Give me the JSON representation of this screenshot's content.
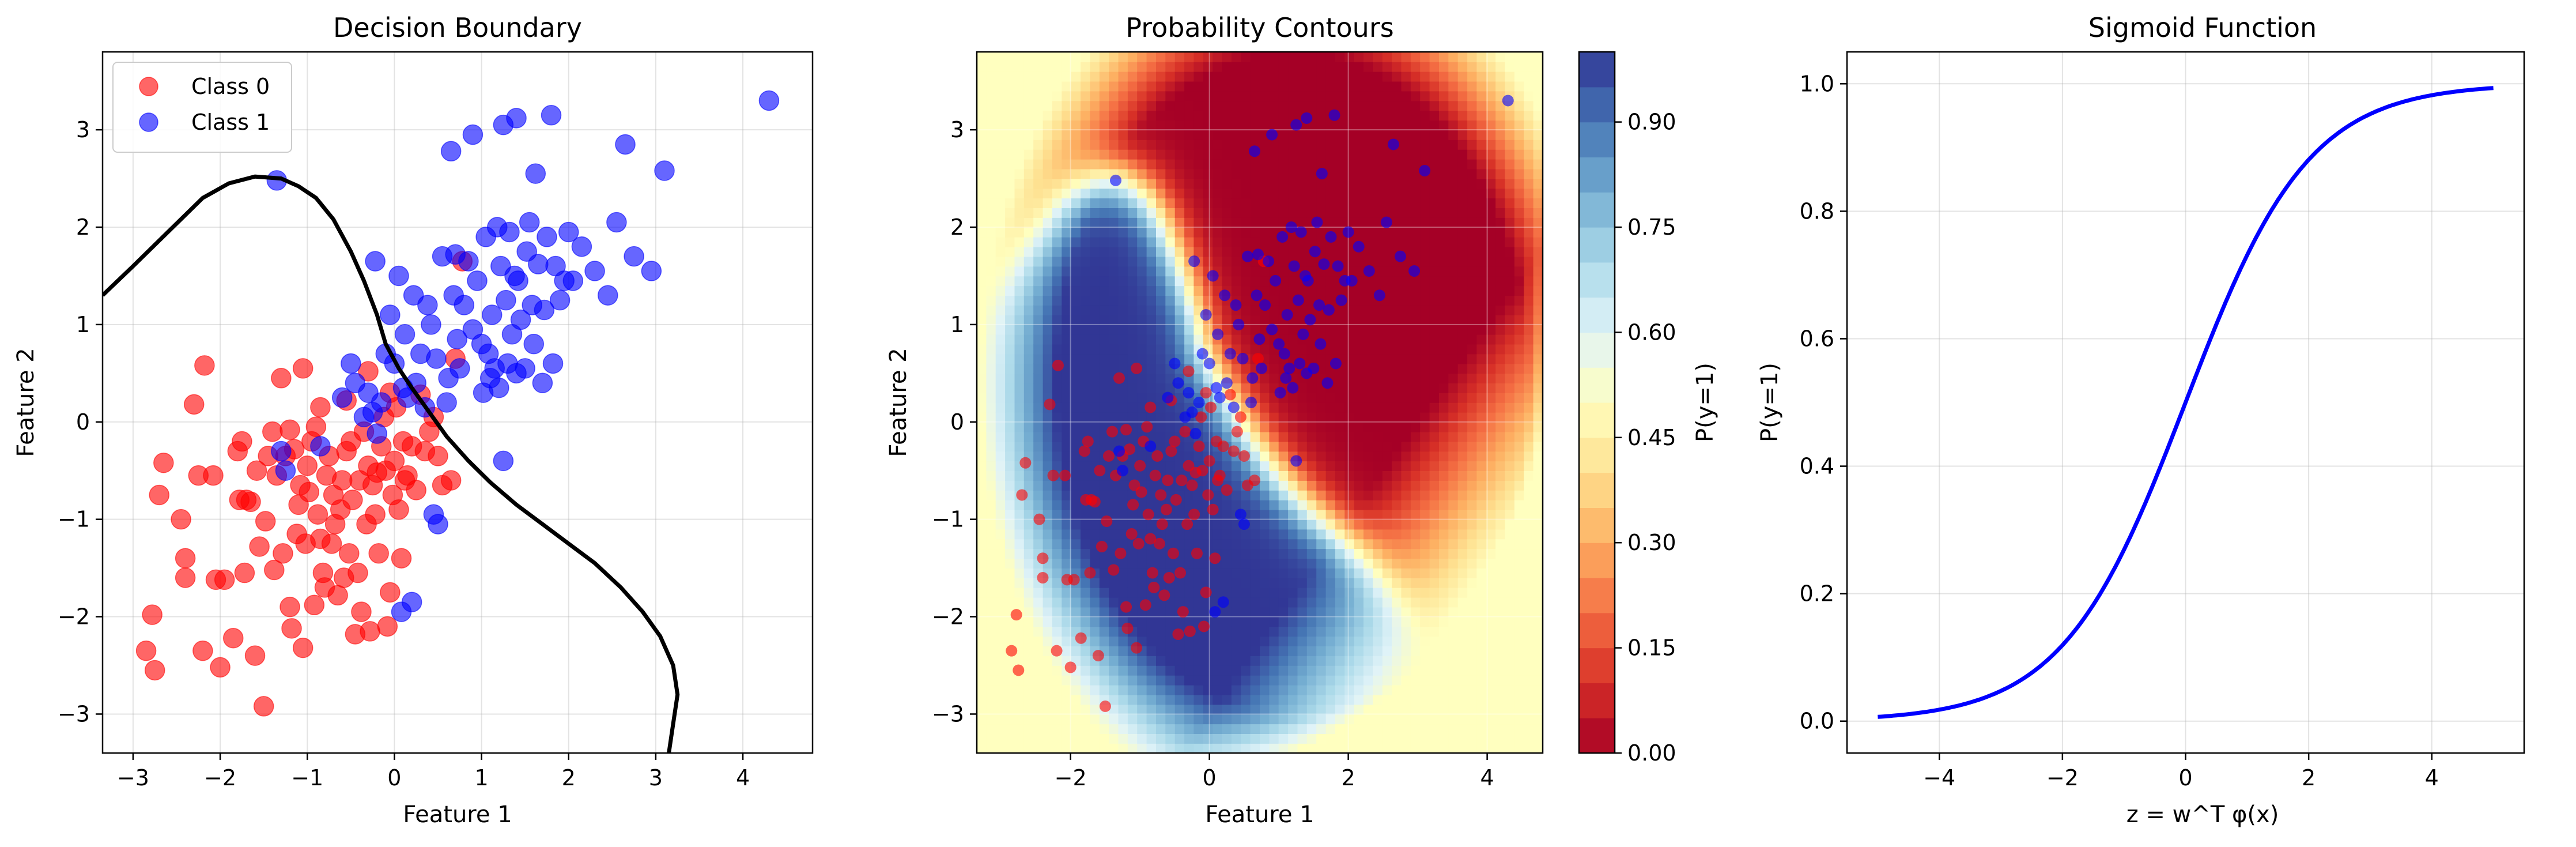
{
  "chart_data": [
    {
      "type": "scatter",
      "title": "Decision Boundary",
      "xlabel": "Feature 1",
      "ylabel": "Feature 2",
      "xlim": [
        -3.35,
        4.8
      ],
      "ylim": [
        -3.4,
        3.8
      ],
      "xticks": [
        -3,
        -2,
        -1,
        0,
        1,
        2,
        3,
        4
      ],
      "yticks": [
        -3,
        -2,
        -1,
        0,
        1,
        2,
        3
      ],
      "grid": true,
      "legend_position": "upper-left",
      "series": [
        {
          "name": "Class 0",
          "color": "#ff0000",
          "points": [
            [
              -2.85,
              -2.35
            ],
            [
              -2.75,
              -2.55
            ],
            [
              -2.78,
              -1.98
            ],
            [
              -2.7,
              -0.75
            ],
            [
              -2.65,
              -0.42
            ],
            [
              -2.45,
              -1.0
            ],
            [
              -2.4,
              -1.4
            ],
            [
              -2.4,
              -1.6
            ],
            [
              -2.3,
              0.18
            ],
            [
              -2.25,
              -0.55
            ],
            [
              -2.2,
              -2.35
            ],
            [
              -2.18,
              0.58
            ],
            [
              -2.08,
              -0.55
            ],
            [
              -2.05,
              -1.62
            ],
            [
              -2.0,
              -2.52
            ],
            [
              -1.95,
              -1.62
            ],
            [
              -1.85,
              -2.22
            ],
            [
              -1.8,
              -0.3
            ],
            [
              -1.78,
              -0.8
            ],
            [
              -1.75,
              -0.2
            ],
            [
              -1.72,
              -1.55
            ],
            [
              -1.7,
              -0.8
            ],
            [
              -1.65,
              -0.82
            ],
            [
              -1.6,
              -2.4
            ],
            [
              -1.58,
              -0.5
            ],
            [
              -1.55,
              -1.28
            ],
            [
              -1.5,
              -2.92
            ],
            [
              -1.48,
              -1.02
            ],
            [
              -1.45,
              -0.35
            ],
            [
              -1.4,
              -0.1
            ],
            [
              -1.38,
              -1.52
            ],
            [
              -1.35,
              -0.55
            ],
            [
              -1.3,
              0.45
            ],
            [
              -1.28,
              -1.35
            ],
            [
              -1.25,
              -0.35
            ],
            [
              -1.2,
              -1.9
            ],
            [
              -1.18,
              -2.12
            ],
            [
              -1.15,
              -0.28
            ],
            [
              -1.12,
              -1.15
            ],
            [
              -1.1,
              -0.85
            ],
            [
              -1.08,
              -0.65
            ],
            [
              -1.05,
              -2.32
            ],
            [
              -1.02,
              -1.25
            ],
            [
              -1.0,
              -0.45
            ],
            [
              -0.98,
              -0.72
            ],
            [
              -0.95,
              -0.2
            ],
            [
              -0.92,
              -1.88
            ],
            [
              -0.9,
              -0.05
            ],
            [
              -0.88,
              -0.95
            ],
            [
              -0.85,
              -1.2
            ],
            [
              -0.82,
              -1.55
            ],
            [
              -0.8,
              -1.7
            ],
            [
              -0.78,
              -0.55
            ],
            [
              -0.75,
              -0.35
            ],
            [
              -0.72,
              -1.25
            ],
            [
              -0.7,
              -0.75
            ],
            [
              -0.68,
              -1.05
            ],
            [
              -0.65,
              -1.78
            ],
            [
              -0.62,
              -0.9
            ],
            [
              -0.6,
              -0.6
            ],
            [
              -0.58,
              -1.6
            ],
            [
              -0.55,
              -0.3
            ],
            [
              -0.52,
              -1.35
            ],
            [
              -0.5,
              -0.2
            ],
            [
              -0.48,
              -0.8
            ],
            [
              -0.45,
              -2.18
            ],
            [
              -0.42,
              -1.55
            ],
            [
              -0.4,
              -0.6
            ],
            [
              -0.38,
              -1.95
            ],
            [
              -0.35,
              -0.1
            ],
            [
              -0.32,
              -1.05
            ],
            [
              -0.3,
              -0.45
            ],
            [
              -0.28,
              -2.15
            ],
            [
              -0.25,
              -0.65
            ],
            [
              -0.22,
              -0.95
            ],
            [
              -0.2,
              -0.52
            ],
            [
              -0.18,
              -1.35
            ],
            [
              -0.15,
              -0.25
            ],
            [
              -0.12,
              0.05
            ],
            [
              -0.1,
              -0.5
            ],
            [
              -0.08,
              -2.1
            ],
            [
              -0.05,
              -1.75
            ],
            [
              -0.02,
              -0.75
            ],
            [
              0.0,
              -0.4
            ],
            [
              0.02,
              0.15
            ],
            [
              0.05,
              -0.9
            ],
            [
              0.08,
              -1.4
            ],
            [
              0.1,
              -0.2
            ],
            [
              0.12,
              -0.6
            ],
            [
              0.15,
              -0.55
            ],
            [
              0.2,
              -0.25
            ],
            [
              0.25,
              -0.7
            ],
            [
              0.3,
              0.28
            ],
            [
              0.35,
              -0.3
            ],
            [
              0.4,
              -0.1
            ],
            [
              0.45,
              0.05
            ],
            [
              0.5,
              -0.35
            ],
            [
              0.55,
              -0.65
            ],
            [
              0.65,
              -0.6
            ],
            [
              0.7,
              0.65
            ],
            [
              0.78,
              1.65
            ],
            [
              -1.2,
              -0.08
            ],
            [
              -0.55,
              0.22
            ],
            [
              -0.85,
              0.15
            ],
            [
              -1.05,
              0.55
            ],
            [
              -0.3,
              0.52
            ],
            [
              -0.05,
              0.3
            ]
          ]
        },
        {
          "name": "Class 1",
          "color": "#0000ff",
          "points": [
            [
              -1.35,
              2.48
            ],
            [
              -1.3,
              -0.3
            ],
            [
              -1.25,
              -0.5
            ],
            [
              -0.85,
              -0.25
            ],
            [
              -0.6,
              0.25
            ],
            [
              -0.5,
              0.6
            ],
            [
              -0.45,
              0.4
            ],
            [
              -0.35,
              0.05
            ],
            [
              -0.3,
              0.3
            ],
            [
              -0.25,
              0.1
            ],
            [
              -0.22,
              1.65
            ],
            [
              -0.2,
              -0.12
            ],
            [
              -0.15,
              0.2
            ],
            [
              -0.1,
              0.7
            ],
            [
              -0.05,
              1.1
            ],
            [
              0.0,
              0.6
            ],
            [
              0.05,
              1.5
            ],
            [
              0.08,
              -1.95
            ],
            [
              0.1,
              0.35
            ],
            [
              0.12,
              0.9
            ],
            [
              0.15,
              0.25
            ],
            [
              0.2,
              -1.85
            ],
            [
              0.22,
              1.3
            ],
            [
              0.25,
              0.4
            ],
            [
              0.3,
              0.7
            ],
            [
              0.35,
              0.15
            ],
            [
              0.38,
              1.2
            ],
            [
              0.42,
              1.0
            ],
            [
              0.45,
              -0.95
            ],
            [
              0.48,
              0.65
            ],
            [
              0.5,
              -1.05
            ],
            [
              0.55,
              1.7
            ],
            [
              0.6,
              0.2
            ],
            [
              0.62,
              0.45
            ],
            [
              0.65,
              2.78
            ],
            [
              0.68,
              1.3
            ],
            [
              0.7,
              1.72
            ],
            [
              0.72,
              0.85
            ],
            [
              0.75,
              0.55
            ],
            [
              0.8,
              1.2
            ],
            [
              0.85,
              1.65
            ],
            [
              0.9,
              0.95
            ],
            [
              0.95,
              1.45
            ],
            [
              1.0,
              0.8
            ],
            [
              1.02,
              0.3
            ],
            [
              1.05,
              1.9
            ],
            [
              1.08,
              0.7
            ],
            [
              1.1,
              0.45
            ],
            [
              1.12,
              1.1
            ],
            [
              1.15,
              0.55
            ],
            [
              1.18,
              2.0
            ],
            [
              1.2,
              0.35
            ],
            [
              1.22,
              1.6
            ],
            [
              1.25,
              -0.4
            ],
            [
              1.28,
              1.25
            ],
            [
              1.3,
              0.6
            ],
            [
              1.32,
              1.95
            ],
            [
              1.35,
              0.9
            ],
            [
              1.38,
              1.5
            ],
            [
              1.4,
              0.5
            ],
            [
              1.42,
              1.45
            ],
            [
              1.45,
              1.05
            ],
            [
              1.5,
              0.55
            ],
            [
              1.52,
              1.75
            ],
            [
              1.55,
              2.05
            ],
            [
              1.58,
              1.2
            ],
            [
              1.6,
              0.8
            ],
            [
              1.62,
              2.55
            ],
            [
              1.65,
              1.62
            ],
            [
              1.7,
              0.4
            ],
            [
              1.72,
              1.15
            ],
            [
              1.75,
              1.9
            ],
            [
              1.8,
              3.15
            ],
            [
              1.82,
              0.6
            ],
            [
              1.85,
              1.6
            ],
            [
              1.9,
              1.25
            ],
            [
              1.95,
              1.45
            ],
            [
              2.0,
              1.95
            ],
            [
              2.05,
              1.45
            ],
            [
              2.15,
              1.8
            ],
            [
              2.3,
              1.55
            ],
            [
              2.45,
              1.3
            ],
            [
              2.55,
              2.05
            ],
            [
              2.65,
              2.85
            ],
            [
              2.75,
              1.7
            ],
            [
              2.95,
              1.55
            ],
            [
              3.1,
              2.58
            ],
            [
              4.3,
              3.3
            ],
            [
              1.25,
              3.05
            ],
            [
              0.9,
              2.95
            ],
            [
              1.4,
              3.12
            ]
          ]
        }
      ],
      "decision_boundary": [
        [
          -3.35,
          1.3
        ],
        [
          -3.0,
          1.6
        ],
        [
          -2.6,
          1.95
        ],
        [
          -2.2,
          2.3
        ],
        [
          -1.9,
          2.45
        ],
        [
          -1.6,
          2.52
        ],
        [
          -1.3,
          2.5
        ],
        [
          -1.1,
          2.42
        ],
        [
          -0.9,
          2.3
        ],
        [
          -0.7,
          2.08
        ],
        [
          -0.5,
          1.75
        ],
        [
          -0.35,
          1.45
        ],
        [
          -0.2,
          1.1
        ],
        [
          -0.1,
          0.8
        ],
        [
          0.05,
          0.55
        ],
        [
          0.2,
          0.35
        ],
        [
          0.4,
          0.1
        ],
        [
          0.6,
          -0.15
        ],
        [
          0.85,
          -0.4
        ],
        [
          1.1,
          -0.62
        ],
        [
          1.4,
          -0.85
        ],
        [
          1.7,
          -1.05
        ],
        [
          2.0,
          -1.25
        ],
        [
          2.3,
          -1.45
        ],
        [
          2.6,
          -1.7
        ],
        [
          2.85,
          -1.95
        ],
        [
          3.05,
          -2.2
        ],
        [
          3.2,
          -2.5
        ],
        [
          3.25,
          -2.8
        ],
        [
          3.2,
          -3.1
        ],
        [
          3.15,
          -3.4
        ]
      ]
    },
    {
      "type": "heatmap",
      "title": "Probability Contours",
      "xlabel": "Feature 1",
      "ylabel": "Feature 2",
      "xlim": [
        -3.35,
        4.8
      ],
      "ylim": [
        -3.4,
        3.8
      ],
      "xticks": [
        -2,
        0,
        2,
        4
      ],
      "yticks": [
        -3,
        -2,
        -1,
        0,
        1,
        2,
        3
      ],
      "grid": true,
      "colorbar_label": "P(y=1)",
      "colorbar_ticks": [
        "0.00",
        "0.15",
        "0.30",
        "0.45",
        "0.60",
        "0.75",
        "0.90"
      ],
      "colorbar_range": [
        0,
        1
      ],
      "colormap": [
        "#a50026",
        "#d73027",
        "#f46d43",
        "#fdae61",
        "#fee090",
        "#ffffbf",
        "#e0f3f8",
        "#abd9e9",
        "#74add1",
        "#4575b4",
        "#313695"
      ],
      "overlay": "same points as Decision Boundary"
    },
    {
      "type": "line",
      "title": "Sigmoid Function",
      "xlabel": "z = w^T φ(x)",
      "ylabel": "P(y=1)",
      "xlim": [
        -5.5,
        5.5
      ],
      "ylim": [
        -0.05,
        1.05
      ],
      "xticks": [
        -4,
        -2,
        0,
        2,
        4
      ],
      "yticks": [
        "0.0",
        "0.2",
        "0.4",
        "0.6",
        "0.8",
        "1.0"
      ],
      "grid": true,
      "series": [
        {
          "function": "sigmoid",
          "x_range": [
            -5,
            5
          ],
          "color": "#0000ff"
        }
      ]
    }
  ]
}
